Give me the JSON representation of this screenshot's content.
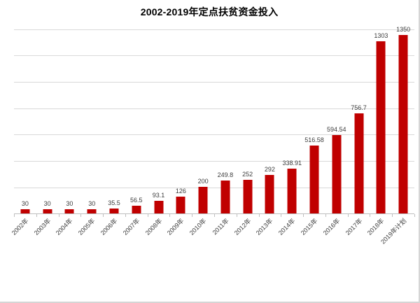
{
  "chart_data": {
    "type": "bar",
    "title": "2002-2019年定点扶贫资金投入",
    "categories": [
      "2002年",
      "2003年",
      "2004年",
      "2005年",
      "2006年",
      "2007年",
      "2008年",
      "2009年",
      "2010年",
      "2011年",
      "2012年",
      "2013年",
      "2014年",
      "2015年",
      "2016年",
      "2017年",
      "2018年",
      "2019年计划"
    ],
    "values": [
      30,
      30,
      30,
      30,
      35.5,
      56.5,
      93.1,
      126,
      200,
      249.8,
      252,
      292,
      338.91,
      516.58,
      594.54,
      756.7,
      1303,
      1350
    ],
    "value_labels": [
      "30",
      "30",
      "30",
      "30",
      "35.5",
      "56.5",
      "93.1",
      "126",
      "200",
      "249.8",
      "252",
      "292",
      "338.91",
      "516.58",
      "594.54",
      "756.7",
      "1303",
      "1350"
    ],
    "xlabel": "",
    "ylabel": "",
    "ylim": [
      0,
      1400
    ],
    "gridline_step": 200,
    "grid": true,
    "legend_position": "none",
    "colors": {
      "bar": "#c00000",
      "gridline": "#d9d9d9",
      "axis": "#bfbfbf",
      "label": "#3c3c3c",
      "title": "#000000",
      "frame_border": "#d5d5d5",
      "background": "#ffffff"
    }
  }
}
